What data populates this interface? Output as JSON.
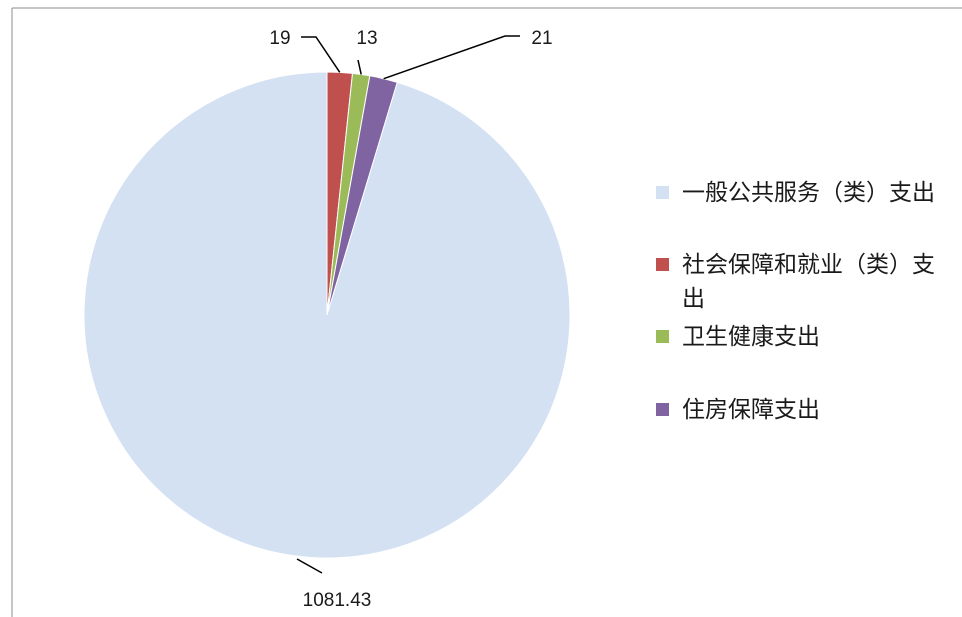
{
  "chart_data": {
    "type": "pie",
    "title": "",
    "categories": [
      "一般公共服务（类）支出",
      "社会保障和就业（类）支出",
      "卫生健康支出",
      "住房保障支出"
    ],
    "values": [
      1081.43,
      19,
      13,
      21
    ],
    "data_labels": [
      "1081.43",
      "19",
      "13",
      "21"
    ],
    "colors": [
      "#D3E1F3",
      "#C0504D",
      "#9BBB59",
      "#8064A2"
    ],
    "legend_position": "right"
  }
}
